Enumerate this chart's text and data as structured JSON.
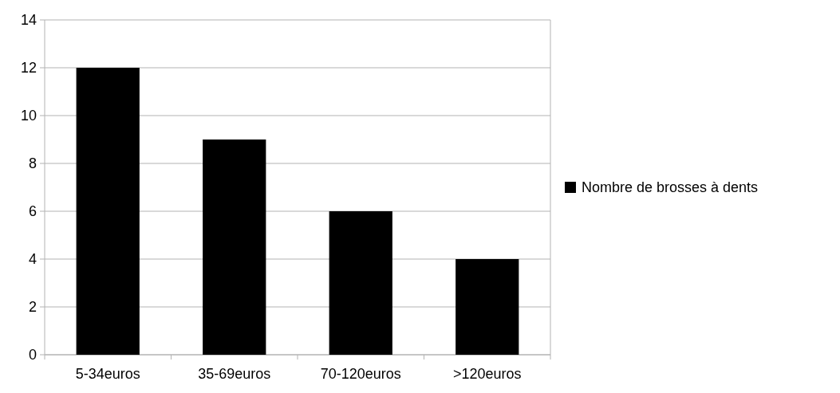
{
  "chart_data": {
    "type": "bar",
    "categories": [
      "5-34euros",
      "35-69euros",
      "70-120euros",
      ">120euros"
    ],
    "series": [
      {
        "name": "Nombre de brosses à dents",
        "color": "#000000",
        "values": [
          12,
          9,
          6,
          4
        ]
      }
    ],
    "ylim": [
      0,
      14
    ],
    "yticks": [
      0,
      2,
      4,
      6,
      8,
      10,
      12,
      14
    ],
    "grid": "y",
    "legend": "right"
  }
}
